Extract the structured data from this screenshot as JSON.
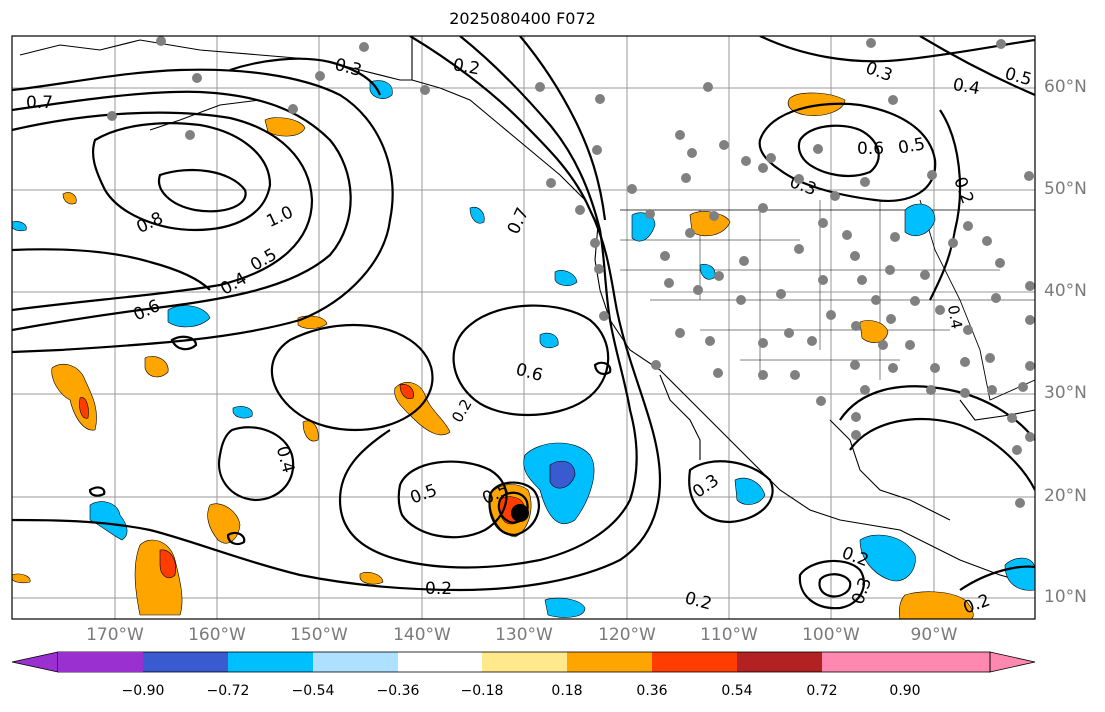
{
  "title": "2025080400 F072",
  "longitude_labels": [
    "170°W",
    "160°W",
    "150°W",
    "140°W",
    "130°W",
    "120°W",
    "110°W",
    "100°W",
    "90°W"
  ],
  "latitude_labels": [
    "60°N",
    "50°N",
    "40°N",
    "30°N",
    "20°N",
    "10°N"
  ],
  "contour_labels": [
    "0.7",
    "0.3",
    "0.2",
    "0.3",
    "0.5",
    "0.4",
    "0.8",
    "1.0",
    "0.5",
    "0.4",
    "0.6",
    "0.7",
    "0.6",
    "0.3",
    "0.6",
    "0.5",
    "0.2",
    "0.4",
    "0.2",
    "0.4",
    "0.5",
    "0.5",
    "0.2",
    "0.3",
    "0.2",
    "0.2",
    "0.3",
    "0.2"
  ],
  "colorbar": {
    "tick_labels": [
      "−0.90",
      "−0.72",
      "−0.54",
      "−0.36",
      "−0.18",
      "0.18",
      "0.36",
      "0.54",
      "0.72",
      "0.90"
    ],
    "colors": [
      "#9b30d0",
      "#00008b",
      "#3a5bd0",
      "#00bfff",
      "#aee0ff",
      "#ffffff",
      "#ffe98a",
      "#ffa500",
      "#ff3d00",
      "#b22222",
      "#ff88b0"
    ]
  }
}
